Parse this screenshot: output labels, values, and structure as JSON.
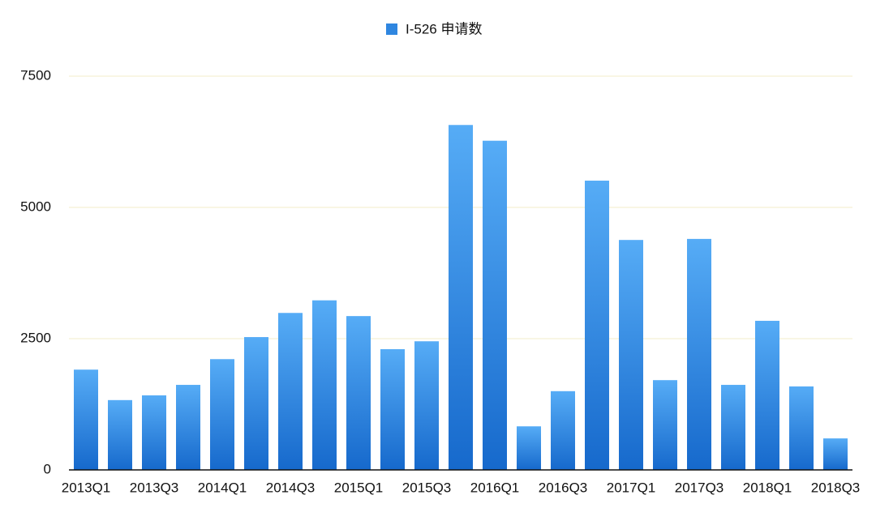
{
  "chart_data": {
    "type": "bar",
    "categories": [
      "2013Q1",
      null,
      "2013Q3",
      null,
      "2014Q1",
      null,
      "2014Q3",
      null,
      "2015Q1",
      null,
      "2015Q3",
      null,
      "2016Q1",
      null,
      "2016Q3",
      null,
      "2017Q1",
      null,
      "2017Q3",
      null,
      "2018Q1",
      null,
      "2018Q3"
    ],
    "series": [
      {
        "name": "I-526 申请数",
        "color": "#2f86e0",
        "gradient": [
          "#56acf6",
          "#1669cc"
        ],
        "values": [
          1910,
          1330,
          1420,
          1620,
          2110,
          2530,
          2990,
          3230,
          2930,
          2300,
          2450,
          6570,
          6270,
          830,
          1500,
          5510,
          4380,
          1710,
          4400,
          1620,
          2840,
          1590,
          600
        ]
      }
    ],
    "ylim": [
      0,
      7500
    ],
    "yticks": [
      0,
      2500,
      5000,
      7500
    ],
    "grid": true,
    "legend": "top"
  }
}
